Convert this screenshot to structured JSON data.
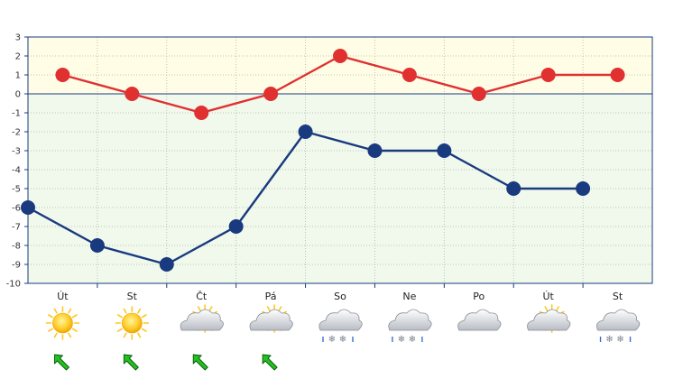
{
  "chart_data": {
    "type": "line",
    "categories": [
      "Út",
      "St",
      "Čt",
      "Pá",
      "So",
      "Ne",
      "Po",
      "Út",
      "St"
    ],
    "ylim": [
      -10,
      3
    ],
    "yticks": [
      3,
      2,
      1,
      0,
      -1,
      -2,
      -3,
      -4,
      -5,
      -6,
      -7,
      -8,
      -9,
      -10
    ],
    "grid": true,
    "series": [
      {
        "color": "#e03030",
        "x": [
          0.5,
          1.5,
          2.5,
          3.5,
          4.5,
          5.5,
          6.5,
          7.5,
          8.5
        ],
        "values": [
          1,
          0,
          -1,
          0,
          2,
          1,
          0,
          1,
          1
        ]
      },
      {
        "color": "#1a3a80",
        "x": [
          0,
          1,
          2,
          3,
          4,
          5,
          6,
          7,
          8
        ],
        "values": [
          -6,
          -8,
          -9,
          -7,
          -2,
          -3,
          -3,
          -5,
          -5
        ]
      }
    ],
    "weather_icons": [
      "sun-icon",
      "sun-icon",
      "sun-cloud-icon",
      "sun-cloud-icon",
      "snow-cloud-icon",
      "snow-cloud-icon",
      "cloud-icon",
      "sun-cloud-icon",
      "snow-cloud-icon"
    ],
    "wind_icons": [
      "wind-nw-arrow-icon",
      "wind-nw-arrow-icon",
      "wind-nw-arrow-icon",
      "wind-nw-arrow-icon",
      "",
      "",
      "",
      "",
      ""
    ],
    "colors": {
      "above_zero_bg": "#fffde6",
      "below_zero_bg": "#f1f9ec",
      "axis": "#1a3a80",
      "grid": "#a8b8a8",
      "wind_arrow": "#22c020"
    }
  }
}
